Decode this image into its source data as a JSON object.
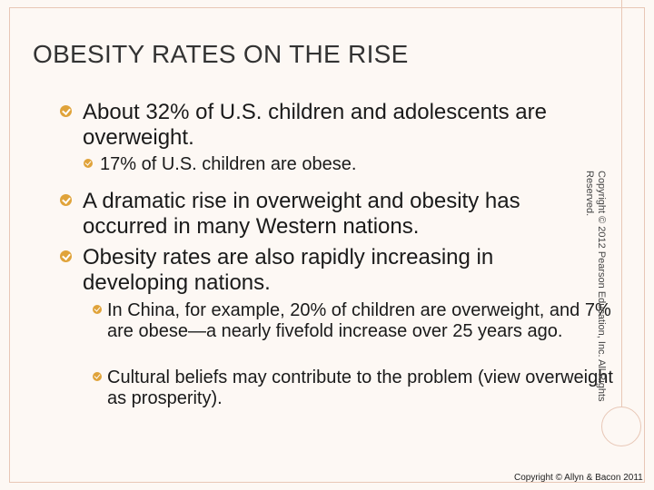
{
  "title": "OBESITY RATES ON THE RISE",
  "bullets": [
    {
      "level": 1,
      "text": "About 32% of U.S. children and adolescents are overweight."
    },
    {
      "level": 2,
      "text": "17% of U.S. children are obese."
    },
    {
      "level": 1,
      "text": "A dramatic rise in overweight and obesity has occurred in many Western nations."
    },
    {
      "level": 1,
      "text": "Obesity rates are also rapidly increasing in developing nations."
    },
    {
      "level": 2,
      "text": "In China, for example, 20% of children are overweight, and 7% are obese—a nearly fivefold increase over 25 years ago."
    },
    {
      "level": 2,
      "text": "Cultural beliefs may contribute to the problem (view overweight as prosperity)."
    }
  ],
  "side_copyright": "Copyright © 2012 Pearson Education, Inc. All Rights Reserved.",
  "footer_copyright": "Copyright © Allyn & Bacon 2011",
  "colors": {
    "accent": "#e0a33a",
    "frame": "#e8c7b6",
    "background": "#fdf8f4"
  }
}
